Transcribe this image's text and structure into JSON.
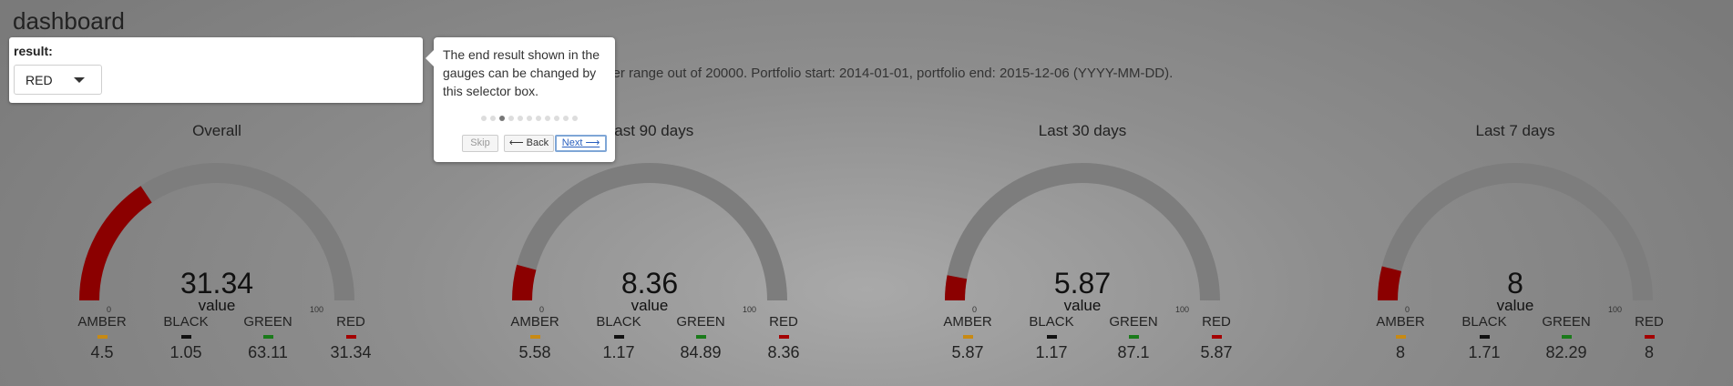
{
  "page": {
    "title": "dashboard",
    "info": "lter range out of 20000. Portfolio start: 2014-01-01, portfolio end: 2015-12-06 (YYYY-MM-DD)."
  },
  "result": {
    "label": "result:",
    "selected": "RED"
  },
  "tour": {
    "text": "The end result shown in the gauges can be changed by this selector box.",
    "skip": "Skip",
    "back": "⟵ Back",
    "next": "Next ⟶",
    "dot_count": 11,
    "active_dot": 2
  },
  "colors": {
    "arc_track": "#7d7d7d",
    "arc_fill": "#8b0000",
    "amber": "#c88a14",
    "black": "#111111",
    "green": "#1a7a1a",
    "red": "#a40000"
  },
  "legend_keys": [
    "AMBER",
    "BLACK",
    "GREEN",
    "RED"
  ],
  "gauges": [
    {
      "title": "Overall",
      "value": "31.34",
      "value_label": "value",
      "min": "0",
      "max": "100",
      "level": 31.34,
      "legend": [
        {
          "name": "AMBER",
          "value": "4.5"
        },
        {
          "name": "BLACK",
          "value": "1.05"
        },
        {
          "name": "GREEN",
          "value": "63.11"
        },
        {
          "name": "RED",
          "value": "31.34"
        }
      ]
    },
    {
      "title": "Last 90 days",
      "value": "8.36",
      "value_label": "value",
      "min": "0",
      "max": "100",
      "level": 8.36,
      "legend": [
        {
          "name": "AMBER",
          "value": "5.58"
        },
        {
          "name": "BLACK",
          "value": "1.17"
        },
        {
          "name": "GREEN",
          "value": "84.89"
        },
        {
          "name": "RED",
          "value": "8.36"
        }
      ]
    },
    {
      "title": "Last 30 days",
      "value": "5.87",
      "value_label": "value",
      "min": "0",
      "max": "100",
      "level": 5.87,
      "legend": [
        {
          "name": "AMBER",
          "value": "5.87"
        },
        {
          "name": "BLACK",
          "value": "1.17"
        },
        {
          "name": "GREEN",
          "value": "87.1"
        },
        {
          "name": "RED",
          "value": "5.87"
        }
      ]
    },
    {
      "title": "Last 7 days",
      "value": "8",
      "value_label": "value",
      "min": "0",
      "max": "100",
      "level": 8,
      "legend": [
        {
          "name": "AMBER",
          "value": "8"
        },
        {
          "name": "BLACK",
          "value": "1.71"
        },
        {
          "name": "GREEN",
          "value": "82.29"
        },
        {
          "name": "RED",
          "value": "8"
        }
      ]
    }
  ]
}
